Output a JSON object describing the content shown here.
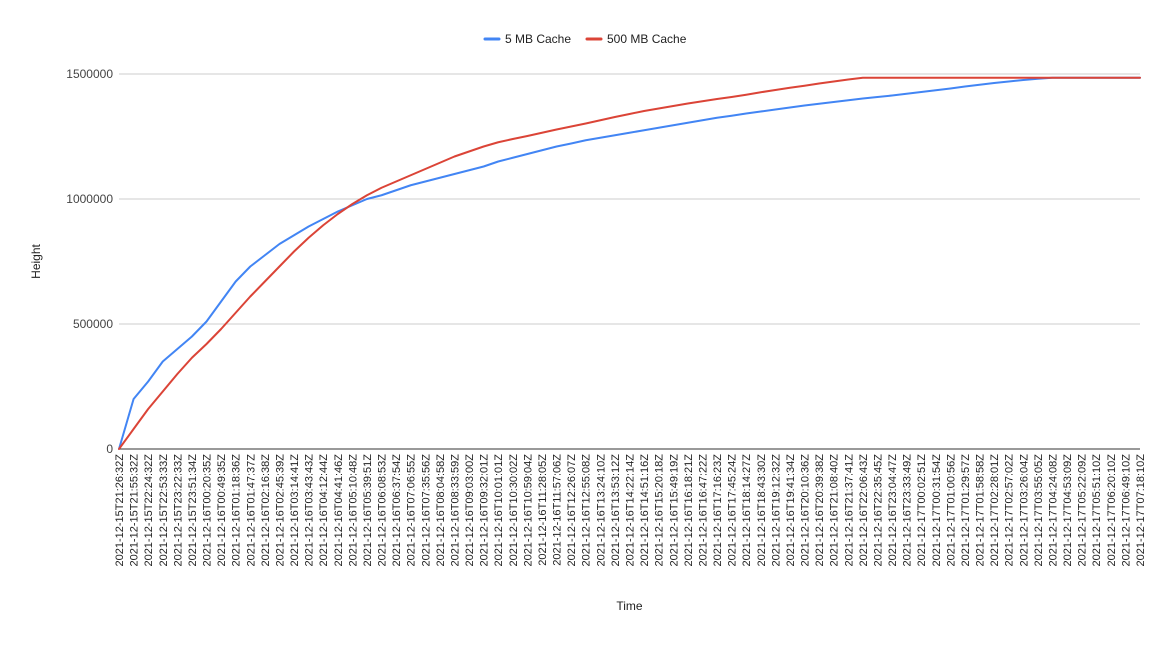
{
  "chart_data": {
    "type": "line",
    "title": "",
    "xlabel": "Time",
    "ylabel": "Height",
    "ylim": [
      0,
      1500000
    ],
    "yticks": [
      0,
      500000,
      1000000,
      1500000
    ],
    "ytick_labels": [
      "0",
      "500000",
      "1000000",
      "1500000"
    ],
    "grid": true,
    "legend_position": "top-center",
    "x_tick_labels": [
      "2021-12-15T21:26:32Z",
      "2021-12-15T21:55:32Z",
      "2021-12-15T22:24:32Z",
      "2021-12-15T22:53:33Z",
      "2021-12-15T23:22:33Z",
      "2021-12-15T23:51:34Z",
      "2021-12-16T00:20:35Z",
      "2021-12-16T00:49:35Z",
      "2021-12-16T01:18:36Z",
      "2021-12-16T01:47:37Z",
      "2021-12-16T02:16:38Z",
      "2021-12-16T02:45:39Z",
      "2021-12-16T03:14:41Z",
      "2021-12-16T03:43:43Z",
      "2021-12-16T04:12:44Z",
      "2021-12-16T04:41:46Z",
      "2021-12-16T05:10:48Z",
      "2021-12-16T05:39:51Z",
      "2021-12-16T06:08:53Z",
      "2021-12-16T06:37:54Z",
      "2021-12-16T07:06:55Z",
      "2021-12-16T07:35:56Z",
      "2021-12-16T08:04:58Z",
      "2021-12-16T08:33:59Z",
      "2021-12-16T09:03:00Z",
      "2021-12-16T09:32:01Z",
      "2021-12-16T10:01:01Z",
      "2021-12-16T10:30:02Z",
      "2021-12-16T10:59:04Z",
      "2021-12-16T11:28:05Z",
      "2021-12-16T11:57:06Z",
      "2021-12-16T12:26:07Z",
      "2021-12-16T12:55:08Z",
      "2021-12-16T13:24:10Z",
      "2021-12-16T13:53:12Z",
      "2021-12-16T14:22:14Z",
      "2021-12-16T14:51:16Z",
      "2021-12-16T15:20:18Z",
      "2021-12-16T15:49:19Z",
      "2021-12-16T16:18:21Z",
      "2021-12-16T16:47:22Z",
      "2021-12-16T17:16:23Z",
      "2021-12-16T17:45:24Z",
      "2021-12-16T18:14:27Z",
      "2021-12-16T18:43:30Z",
      "2021-12-16T19:12:32Z",
      "2021-12-16T19:41:34Z",
      "2021-12-16T20:10:36Z",
      "2021-12-16T20:39:38Z",
      "2021-12-16T21:08:40Z",
      "2021-12-16T21:37:41Z",
      "2021-12-16T22:06:43Z",
      "2021-12-16T22:35:45Z",
      "2021-12-16T23:04:47Z",
      "2021-12-16T23:33:49Z",
      "2021-12-17T00:02:51Z",
      "2021-12-17T00:31:54Z",
      "2021-12-17T01:00:56Z",
      "2021-12-17T01:29:57Z",
      "2021-12-17T01:58:58Z",
      "2021-12-17T02:28:01Z",
      "2021-12-17T02:57:02Z",
      "2021-12-17T03:26:04Z",
      "2021-12-17T03:55:05Z",
      "2021-12-17T04:24:08Z",
      "2021-12-17T04:53:09Z",
      "2021-12-17T05:22:09Z",
      "2021-12-17T05:51:10Z",
      "2021-12-17T06:20:10Z",
      "2021-12-17T06:49:10Z",
      "2021-12-17T07:18:10Z"
    ],
    "x": [
      "2021-12-15T21:26:32Z",
      "2021-12-15T21:55:32Z",
      "2021-12-15T22:24:32Z",
      "2021-12-15T22:53:33Z",
      "2021-12-15T23:22:33Z",
      "2021-12-15T23:51:34Z",
      "2021-12-16T00:20:35Z",
      "2021-12-16T00:49:35Z",
      "2021-12-16T01:18:36Z",
      "2021-12-16T01:47:37Z",
      "2021-12-16T02:16:38Z",
      "2021-12-16T02:45:39Z",
      "2021-12-16T03:14:41Z",
      "2021-12-16T03:43:43Z",
      "2021-12-16T04:12:44Z",
      "2021-12-16T04:41:46Z",
      "2021-12-16T05:10:48Z",
      "2021-12-16T05:39:51Z",
      "2021-12-16T06:08:53Z",
      "2021-12-16T06:37:54Z",
      "2021-12-16T07:06:55Z",
      "2021-12-16T07:35:56Z",
      "2021-12-16T08:04:58Z",
      "2021-12-16T08:33:59Z",
      "2021-12-16T09:03:00Z",
      "2021-12-16T09:32:01Z",
      "2021-12-16T10:01:01Z",
      "2021-12-16T10:30:02Z",
      "2021-12-16T10:59:04Z",
      "2021-12-16T11:28:05Z",
      "2021-12-16T11:57:06Z",
      "2021-12-16T12:26:07Z",
      "2021-12-16T12:55:08Z",
      "2021-12-16T13:24:10Z",
      "2021-12-16T13:53:12Z",
      "2021-12-16T14:22:14Z",
      "2021-12-16T14:51:16Z",
      "2021-12-16T15:20:18Z",
      "2021-12-16T15:49:19Z",
      "2021-12-16T16:18:21Z",
      "2021-12-16T16:47:22Z",
      "2021-12-16T17:16:23Z",
      "2021-12-16T17:45:24Z",
      "2021-12-16T18:14:27Z",
      "2021-12-16T18:43:30Z",
      "2021-12-16T19:12:32Z",
      "2021-12-16T19:41:34Z",
      "2021-12-16T20:10:36Z",
      "2021-12-16T20:39:38Z",
      "2021-12-16T21:08:40Z",
      "2021-12-16T21:37:41Z",
      "2021-12-16T22:06:43Z",
      "2021-12-16T22:35:45Z",
      "2021-12-16T23:04:47Z",
      "2021-12-16T23:33:49Z",
      "2021-12-17T00:02:51Z",
      "2021-12-17T00:31:54Z",
      "2021-12-17T01:00:56Z",
      "2021-12-17T01:29:57Z",
      "2021-12-17T01:58:58Z",
      "2021-12-17T02:28:01Z",
      "2021-12-17T02:57:02Z",
      "2021-12-17T03:26:04Z",
      "2021-12-17T03:55:05Z",
      "2021-12-17T04:24:08Z",
      "2021-12-17T04:53:09Z",
      "2021-12-17T05:22:09Z",
      "2021-12-17T05:51:10Z",
      "2021-12-17T06:20:10Z",
      "2021-12-17T06:49:10Z",
      "2021-12-17T07:18:10Z"
    ],
    "series": [
      {
        "name": "5 MB Cache",
        "color": "#4285f4",
        "values": [
          0,
          200000,
          270000,
          350000,
          400000,
          450000,
          510000,
          590000,
          670000,
          730000,
          775000,
          820000,
          855000,
          890000,
          920000,
          950000,
          975000,
          1000000,
          1015000,
          1035000,
          1055000,
          1070000,
          1085000,
          1100000,
          1115000,
          1130000,
          1150000,
          1165000,
          1180000,
          1195000,
          1210000,
          1222000,
          1235000,
          1245000,
          1255000,
          1265000,
          1275000,
          1285000,
          1295000,
          1305000,
          1315000,
          1325000,
          1333000,
          1342000,
          1350000,
          1358000,
          1366000,
          1374000,
          1381000,
          1388000,
          1395000,
          1402000,
          1408000,
          1414000,
          1421000,
          1428000,
          1435000,
          1442000,
          1450000,
          1457000,
          1464000,
          1470000,
          1476000,
          1481000,
          1485000,
          1485000,
          1485000,
          1485000,
          1485000,
          1485000,
          1485000
        ]
      },
      {
        "name": "500 MB Cache",
        "color": "#db4437",
        "values": [
          0,
          80000,
          160000,
          230000,
          300000,
          365000,
          420000,
          480000,
          545000,
          610000,
          670000,
          730000,
          790000,
          845000,
          895000,
          940000,
          980000,
          1015000,
          1045000,
          1070000,
          1095000,
          1120000,
          1145000,
          1170000,
          1190000,
          1210000,
          1227000,
          1240000,
          1252000,
          1265000,
          1278000,
          1290000,
          1302000,
          1315000,
          1328000,
          1340000,
          1352000,
          1362000,
          1372000,
          1382000,
          1391000,
          1400000,
          1408000,
          1417000,
          1427000,
          1436000,
          1445000,
          1453000,
          1462000,
          1470000,
          1478000,
          1485000,
          1485000,
          1485000,
          1485000,
          1485000,
          1485000,
          1485000,
          1485000,
          1485000,
          1485000,
          1485000,
          1485000,
          1485000,
          1485000,
          1485000,
          1485000,
          1485000,
          1485000,
          1485000,
          1485000
        ]
      }
    ]
  }
}
